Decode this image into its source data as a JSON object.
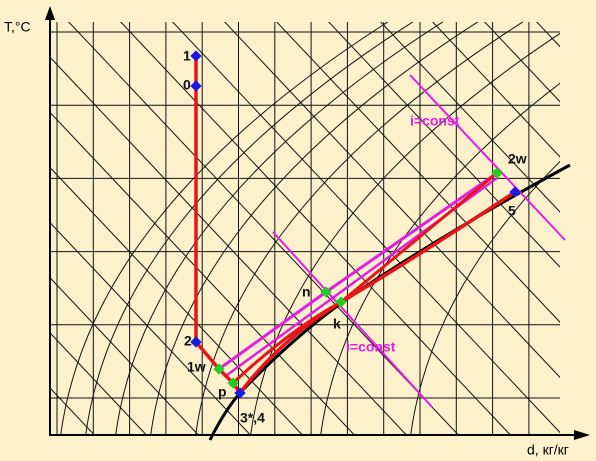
{
  "axes": {
    "y_label": "T,°C",
    "x_label": "d, кг/кг"
  },
  "points": [
    {
      "label": "1"
    },
    {
      "label": "0"
    },
    {
      "label": "2"
    },
    {
      "label": "1w"
    },
    {
      "label": "p"
    },
    {
      "label": "3*,4"
    },
    {
      "label": "n"
    },
    {
      "label": "k"
    },
    {
      "label": "2w"
    },
    {
      "label": "5"
    }
  ],
  "annotations": [
    "i=const",
    "i=const"
  ]
}
